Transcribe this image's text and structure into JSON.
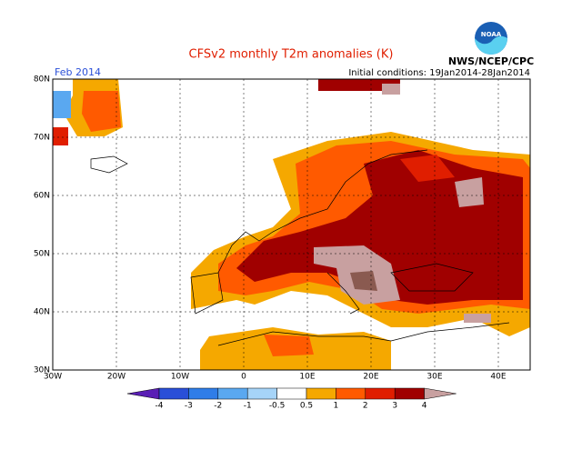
{
  "title": "CFSv2 monthly T2m anomalies (K)",
  "month": "Feb 2014",
  "init": "Initial conditions: 19Jan2014-28Jan2014",
  "agency": "NWS/NCEP/CPC",
  "logo": "NOAA",
  "lat_labels": [
    "80N",
    "70N",
    "60N",
    "50N",
    "40N",
    "30N"
  ],
  "lon_labels": [
    "30W",
    "20W",
    "10W",
    "0",
    "10E",
    "20E",
    "30E",
    "40E"
  ],
  "colorbar": {
    "labels": [
      "-4",
      "-3",
      "-2",
      "-1",
      "-0.5",
      "0.5",
      "1",
      "2",
      "3",
      "4"
    ],
    "colors": [
      "#5a1fb5",
      "#2a4fd8",
      "#2f7de8",
      "#5aa8f0",
      "#a6d4f8",
      "#ffffff",
      "#f5a800",
      "#ff5a00",
      "#e01e00",
      "#a00000",
      "#c8a0a0"
    ]
  }
}
